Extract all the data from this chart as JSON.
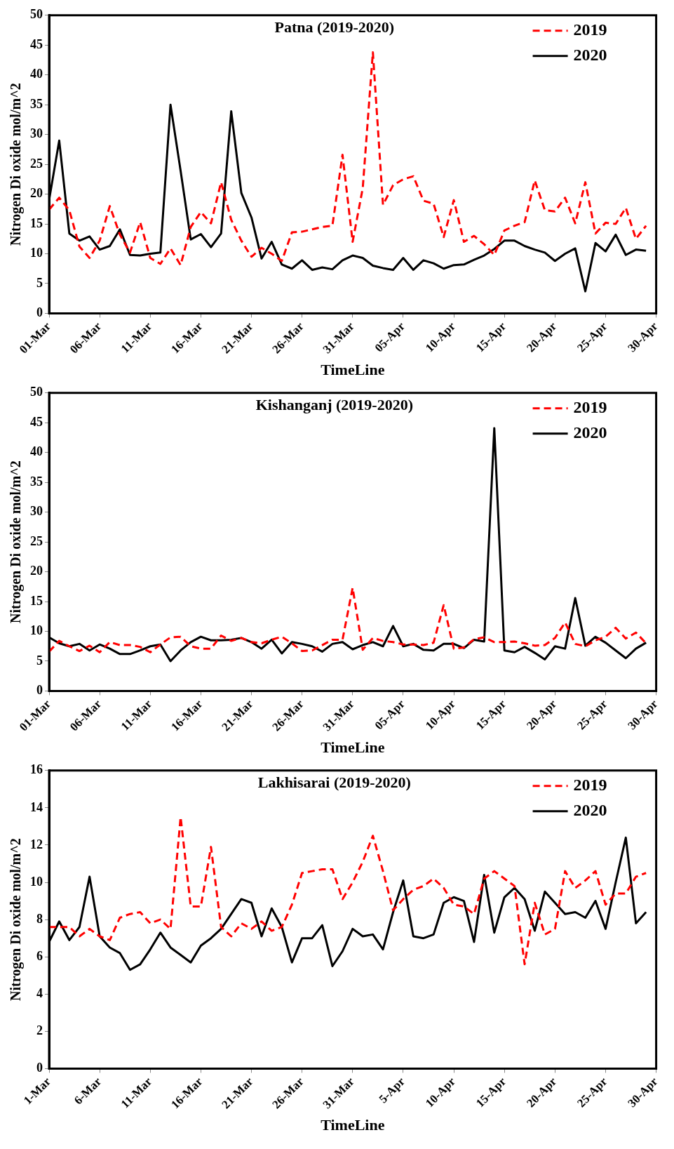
{
  "chart_data": [
    {
      "type": "line",
      "title": "Patna (2019-2020)",
      "xlabel": "TimeLine",
      "ylabel": "Nitrogen Di oxide mol/m^2",
      "legend": "top right",
      "x": [
        "--03-01",
        "--03-02",
        "--03-03",
        "--03-04",
        "--03-05",
        "--03-06",
        "--03-07",
        "--03-08",
        "--03-09",
        "--03-10",
        "--03-11",
        "--03-12",
        "--03-13",
        "--03-14",
        "--03-15",
        "--03-16",
        "--03-17",
        "--03-18",
        "--03-19",
        "--03-20",
        "--03-21",
        "--03-22",
        "--03-23",
        "--03-24",
        "--03-25",
        "--03-26",
        "--03-27",
        "--03-28",
        "--03-29",
        "--03-30",
        "--03-31",
        "--04-01",
        "--04-02",
        "--04-03",
        "--04-04",
        "--04-05",
        "--04-06",
        "--04-07",
        "--04-08",
        "--04-09",
        "--04-10",
        "--04-11",
        "--04-12",
        "--04-13",
        "--04-14",
        "--04-15",
        "--04-16",
        "--04-17",
        "--04-18",
        "--04-19",
        "--04-20",
        "--04-21",
        "--04-22",
        "--04-23",
        "--04-24",
        "--04-25",
        "--04-26",
        "--04-27",
        "--04-28",
        "--04-29"
      ],
      "xlim": [
        "--03-01",
        "--04-30"
      ],
      "xticks": [
        {
          "value": "--03-01",
          "label": "01-Mar"
        },
        {
          "value": "--03-06",
          "label": "06-Mar"
        },
        {
          "value": "--03-11",
          "label": "11-Mar"
        },
        {
          "value": "--03-16",
          "label": "16-Mar"
        },
        {
          "value": "--03-21",
          "label": "21-Mar"
        },
        {
          "value": "--03-26",
          "label": "26-Mar"
        },
        {
          "value": "--03-31",
          "label": "31-Mar"
        },
        {
          "value": "--04-05",
          "label": "05-Apr"
        },
        {
          "value": "--04-10",
          "label": "10-Apr"
        },
        {
          "value": "--04-15",
          "label": "15-Apr"
        },
        {
          "value": "--04-20",
          "label": "20-Apr"
        },
        {
          "value": "--04-25",
          "label": "25-Apr"
        },
        {
          "value": "--04-30",
          "label": "30-Apr"
        }
      ],
      "ylim": [
        0,
        50
      ],
      "yticks": [
        0,
        5,
        10,
        15,
        20,
        25,
        30,
        35,
        40,
        45,
        50
      ],
      "series": [
        {
          "name": "2019",
          "color": "#ff0000",
          "line_style": "dashed",
          "values": [
            17.4,
            19.4,
            17.3,
            11.2,
            9.3,
            12.2,
            18.0,
            13.2,
            10.2,
            15.3,
            9.3,
            8.3,
            10.9,
            8.1,
            14.5,
            17.0,
            15.1,
            22.0,
            15.7,
            12.2,
            9.5,
            11.0,
            10.0,
            8.8,
            13.6,
            13.7,
            14.1,
            14.5,
            14.7,
            26.6,
            12.0,
            21.0,
            43.8,
            18.2,
            21.5,
            22.5,
            23.0,
            18.9,
            18.4,
            12.8,
            19.0,
            12.0,
            13.0,
            11.6,
            9.8,
            13.9,
            14.7,
            15.3,
            22.3,
            17.3,
            17.1,
            19.4,
            15.1,
            22.0,
            13.4,
            15.2,
            15.0,
            17.7,
            12.5,
            14.7
          ]
        },
        {
          "name": "2020",
          "color": "#000000",
          "line_style": "solid",
          "values": [
            19.0,
            29.0,
            13.4,
            12.2,
            12.9,
            10.7,
            11.3,
            14.1,
            9.8,
            9.7,
            10.0,
            10.2,
            35.0,
            23.9,
            12.4,
            13.3,
            11.1,
            13.4,
            33.9,
            20.2,
            16.1,
            9.2,
            12.0,
            8.2,
            7.5,
            8.9,
            7.3,
            7.7,
            7.4,
            8.9,
            9.7,
            9.3,
            8.0,
            7.6,
            7.3,
            9.3,
            7.3,
            8.9,
            8.4,
            7.5,
            8.1,
            8.2,
            9.0,
            9.7,
            10.8,
            12.2,
            12.2,
            11.3,
            10.7,
            10.2,
            8.8,
            10.0,
            10.9,
            3.7,
            11.8,
            10.4,
            13.2,
            9.8,
            10.7,
            10.5
          ]
        }
      ]
    },
    {
      "type": "line",
      "title": "Kishanganj (2019-2020)",
      "xlabel": "TimeLine",
      "ylabel": "Nitrogen Di oxide mol/m^2",
      "legend": "top right",
      "x": [
        "--03-01",
        "--03-02",
        "--03-03",
        "--03-04",
        "--03-05",
        "--03-06",
        "--03-07",
        "--03-08",
        "--03-09",
        "--03-10",
        "--03-11",
        "--03-12",
        "--03-13",
        "--03-14",
        "--03-15",
        "--03-16",
        "--03-17",
        "--03-18",
        "--03-19",
        "--03-20",
        "--03-21",
        "--03-22",
        "--03-23",
        "--03-24",
        "--03-25",
        "--03-26",
        "--03-27",
        "--03-28",
        "--03-29",
        "--03-30",
        "--03-31",
        "--04-01",
        "--04-02",
        "--04-03",
        "--04-04",
        "--04-05",
        "--04-06",
        "--04-07",
        "--04-08",
        "--04-09",
        "--04-10",
        "--04-11",
        "--04-12",
        "--04-13",
        "--04-14",
        "--04-15",
        "--04-16",
        "--04-17",
        "--04-18",
        "--04-19",
        "--04-20",
        "--04-21",
        "--04-22",
        "--04-23",
        "--04-24",
        "--04-25",
        "--04-26",
        "--04-27",
        "--04-28",
        "--04-29"
      ],
      "xlim": [
        "--03-01",
        "--04-30"
      ],
      "xticks": [
        {
          "value": "--03-01",
          "label": "01-Mar"
        },
        {
          "value": "--03-06",
          "label": "06-Mar"
        },
        {
          "value": "--03-11",
          "label": "11-Mar"
        },
        {
          "value": "--03-16",
          "label": "16-Mar"
        },
        {
          "value": "--03-21",
          "label": "21-Mar"
        },
        {
          "value": "--03-26",
          "label": "26-Mar"
        },
        {
          "value": "--03-31",
          "label": "31-Mar"
        },
        {
          "value": "--04-05",
          "label": "05-Apr"
        },
        {
          "value": "--04-10",
          "label": "10-Apr"
        },
        {
          "value": "--04-15",
          "label": "15-Apr"
        },
        {
          "value": "--04-20",
          "label": "20-Apr"
        },
        {
          "value": "--04-25",
          "label": "25-Apr"
        },
        {
          "value": "--04-30",
          "label": "30-Apr"
        }
      ],
      "ylim": [
        0,
        50
      ],
      "yticks": [
        0,
        5,
        10,
        15,
        20,
        25,
        30,
        35,
        40,
        45,
        50
      ],
      "series": [
        {
          "name": "2019",
          "color": "#ff0000",
          "line_style": "dashed",
          "values": [
            6.6,
            8.4,
            7.5,
            6.7,
            7.6,
            6.5,
            8.2,
            7.7,
            7.7,
            7.4,
            6.5,
            7.8,
            9.0,
            9.1,
            7.5,
            7.1,
            7.1,
            9.3,
            8.4,
            8.9,
            8.2,
            8.0,
            8.6,
            9.1,
            8.0,
            6.7,
            6.8,
            7.7,
            8.6,
            8.6,
            17.3,
            6.9,
            8.9,
            8.4,
            8.2,
            7.8,
            7.8,
            7.7,
            8.1,
            14.4,
            7.1,
            7.3,
            8.7,
            9.0,
            8.2,
            8.2,
            8.3,
            8.0,
            7.6,
            7.7,
            8.9,
            11.5,
            7.9,
            7.5,
            8.5,
            9.1,
            10.6,
            8.8,
            9.8,
            8.0
          ]
        },
        {
          "name": "2020",
          "color": "#000000",
          "line_style": "solid",
          "values": [
            9.0,
            8.0,
            7.5,
            7.9,
            6.8,
            7.8,
            7.1,
            6.2,
            6.2,
            6.8,
            7.5,
            7.8,
            5.0,
            6.8,
            8.2,
            9.1,
            8.5,
            8.5,
            8.6,
            8.9,
            8.2,
            7.1,
            8.6,
            6.3,
            8.2,
            7.9,
            7.5,
            6.6,
            7.9,
            8.2,
            7.0,
            7.7,
            8.2,
            7.5,
            10.9,
            7.5,
            7.9,
            6.9,
            6.8,
            7.9,
            7.9,
            7.2,
            8.6,
            8.3,
            44.1,
            6.8,
            6.5,
            7.4,
            6.4,
            5.3,
            7.5,
            7.1,
            15.6,
            7.6,
            9.1,
            8.1,
            6.8,
            5.5,
            7.1,
            8.1
          ]
        }
      ]
    },
    {
      "type": "line",
      "title": "Lakhisarai (2019-2020)",
      "xlabel": "TimeLine",
      "ylabel": "Nitrogen Di oxide mol/m^2",
      "legend": "top right",
      "x": [
        "--03-01",
        "--03-02",
        "--03-03",
        "--03-04",
        "--03-05",
        "--03-06",
        "--03-07",
        "--03-08",
        "--03-09",
        "--03-10",
        "--03-11",
        "--03-12",
        "--03-13",
        "--03-14",
        "--03-15",
        "--03-16",
        "--03-17",
        "--03-18",
        "--03-19",
        "--03-20",
        "--03-21",
        "--03-22",
        "--03-23",
        "--03-24",
        "--03-25",
        "--03-26",
        "--03-27",
        "--03-28",
        "--03-29",
        "--03-30",
        "--03-31",
        "--04-01",
        "--04-02",
        "--04-03",
        "--04-04",
        "--04-05",
        "--04-06",
        "--04-07",
        "--04-08",
        "--04-09",
        "--04-10",
        "--04-11",
        "--04-12",
        "--04-13",
        "--04-14",
        "--04-15",
        "--04-16",
        "--04-17",
        "--04-18",
        "--04-19",
        "--04-20",
        "--04-21",
        "--04-22",
        "--04-23",
        "--04-24",
        "--04-25",
        "--04-26",
        "--04-27",
        "--04-28",
        "--04-29"
      ],
      "xlim": [
        "--03-01",
        "--04-30"
      ],
      "xticks": [
        {
          "value": "--03-01",
          "label": "1-Mar"
        },
        {
          "value": "--03-06",
          "label": "6-Mar"
        },
        {
          "value": "--03-11",
          "label": "11-Mar"
        },
        {
          "value": "--03-16",
          "label": "16-Mar"
        },
        {
          "value": "--03-21",
          "label": "21-Mar"
        },
        {
          "value": "--03-26",
          "label": "26-Mar"
        },
        {
          "value": "--03-31",
          "label": "31-Mar"
        },
        {
          "value": "--04-05",
          "label": "5-Apr"
        },
        {
          "value": "--04-10",
          "label": "10-Apr"
        },
        {
          "value": "--04-15",
          "label": "15-Apr"
        },
        {
          "value": "--04-20",
          "label": "20-Apr"
        },
        {
          "value": "--04-25",
          "label": "25-Apr"
        },
        {
          "value": "--04-30",
          "label": "30-Apr"
        }
      ],
      "ylim": [
        0,
        16
      ],
      "yticks": [
        0,
        2,
        4,
        6,
        8,
        10,
        12,
        14,
        16
      ],
      "series": [
        {
          "name": "2019",
          "color": "#ff0000",
          "line_style": "dashed",
          "values": [
            7.6,
            7.6,
            7.6,
            7.1,
            7.5,
            7.1,
            6.9,
            8.1,
            8.3,
            8.4,
            7.8,
            8.0,
            7.5,
            13.5,
            8.7,
            8.7,
            11.9,
            7.6,
            7.1,
            7.8,
            7.5,
            7.9,
            7.4,
            7.6,
            8.8,
            10.5,
            10.6,
            10.7,
            10.7,
            9.1,
            10.0,
            11.1,
            12.5,
            10.6,
            8.5,
            9.1,
            9.6,
            9.8,
            10.2,
            9.7,
            8.8,
            8.7,
            8.3,
            10.2,
            10.6,
            10.2,
            9.8,
            5.6,
            8.9,
            7.2,
            7.5,
            10.6,
            9.7,
            10.1,
            10.6,
            8.8,
            9.4,
            9.4,
            10.3,
            10.5
          ]
        },
        {
          "name": "2020",
          "color": "#000000",
          "line_style": "solid",
          "values": [
            6.8,
            7.9,
            6.9,
            7.6,
            10.3,
            7.1,
            6.5,
            6.2,
            5.3,
            5.6,
            6.4,
            7.3,
            6.5,
            6.1,
            5.7,
            6.6,
            7.0,
            7.5,
            8.3,
            9.1,
            8.9,
            7.1,
            8.6,
            7.6,
            5.7,
            7.0,
            7.0,
            7.7,
            5.5,
            6.3,
            7.5,
            7.1,
            7.2,
            6.4,
            8.4,
            10.1,
            7.1,
            7.0,
            7.2,
            8.9,
            9.2,
            9.0,
            6.8,
            10.4,
            7.3,
            9.2,
            9.7,
            9.1,
            7.4,
            9.5,
            8.9,
            8.3,
            8.4,
            8.1,
            9.0,
            7.5,
            10.0,
            12.4,
            7.8,
            8.4
          ]
        }
      ]
    }
  ]
}
